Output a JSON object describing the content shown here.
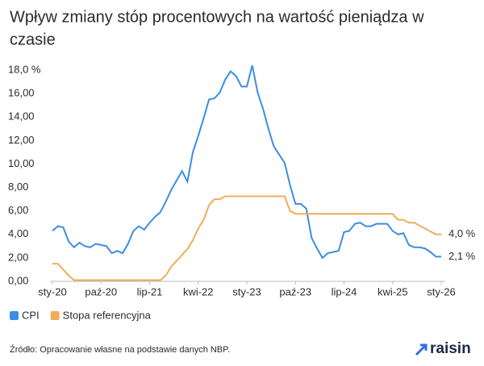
{
  "chart_data": {
    "type": "line",
    "title_lines": [
      "Wpływ zmiany stóp procentowych na wartość pieniądza w",
      "czasie"
    ],
    "categories": [
      "sty-20",
      null,
      null,
      null,
      null,
      null,
      null,
      null,
      null,
      "paź-20",
      null,
      null,
      null,
      null,
      null,
      null,
      null,
      null,
      "lip-21",
      null,
      null,
      null,
      null,
      null,
      null,
      null,
      null,
      "kwi-22",
      null,
      null,
      null,
      null,
      null,
      null,
      null,
      null,
      "sty-23",
      null,
      null,
      null,
      null,
      null,
      null,
      null,
      null,
      "paź-23",
      null,
      null,
      null,
      null,
      null,
      null,
      null,
      null,
      "lip-24",
      null,
      null,
      null,
      null,
      null,
      null,
      null,
      null,
      "kwi-25",
      null,
      null,
      null,
      null,
      null,
      null,
      null,
      null,
      "sty-26"
    ],
    "series": [
      {
        "name": "CPI",
        "color": "#3b8ee3",
        "values": [
          4.3,
          4.7,
          4.6,
          3.4,
          2.9,
          3.3,
          3.0,
          2.9,
          3.2,
          3.1,
          3.0,
          2.4,
          2.6,
          2.4,
          3.2,
          4.3,
          4.7,
          4.4,
          5.0,
          5.5,
          5.9,
          6.8,
          7.8,
          8.6,
          9.4,
          8.5,
          11.0,
          12.4,
          13.9,
          15.5,
          15.6,
          16.1,
          17.2,
          17.9,
          17.5,
          16.6,
          16.6,
          18.4,
          16.1,
          14.7,
          13.0,
          11.5,
          10.8,
          10.1,
          8.2,
          6.6,
          6.6,
          6.2,
          3.7,
          2.8,
          2.0,
          2.4,
          2.5,
          2.6,
          4.2,
          4.3,
          4.9,
          5.0,
          4.7,
          4.7,
          4.9,
          4.9,
          4.9,
          4.3,
          4.0,
          4.1,
          3.1,
          2.9,
          2.9,
          2.8,
          2.5,
          2.1,
          2.1
        ],
        "value_labels": [
          null,
          null,
          null,
          null,
          null,
          null,
          null,
          null,
          null,
          null,
          null,
          null,
          null,
          null,
          null,
          null,
          null,
          null,
          null,
          null,
          null,
          null,
          null,
          null,
          null,
          null,
          null,
          null,
          null,
          null,
          null,
          null,
          null,
          null,
          null,
          null,
          null,
          null,
          null,
          null,
          null,
          null,
          null,
          null,
          null,
          null,
          null,
          null,
          null,
          null,
          null,
          null,
          null,
          null,
          null,
          null,
          null,
          null,
          null,
          null,
          null,
          null,
          null,
          null,
          null,
          null,
          null,
          null,
          null,
          null,
          null,
          null,
          "2,1 %"
        ]
      },
      {
        "name": "Stopa referencyjna",
        "color": "#efad5a",
        "values": [
          1.5,
          1.5,
          1.0,
          0.5,
          0.1,
          0.1,
          0.1,
          0.1,
          0.1,
          0.1,
          0.1,
          0.1,
          0.1,
          0.1,
          0.1,
          0.1,
          0.1,
          0.1,
          0.1,
          0.1,
          0.1,
          0.5,
          1.25,
          1.75,
          2.25,
          2.75,
          3.5,
          4.5,
          5.25,
          6.5,
          7.0,
          7.0,
          7.25,
          7.25,
          7.25,
          7.25,
          7.25,
          7.25,
          7.25,
          7.25,
          7.25,
          7.25,
          7.25,
          7.25,
          6.0,
          5.75,
          5.75,
          5.75,
          5.75,
          5.75,
          5.75,
          5.75,
          5.75,
          5.75,
          5.75,
          5.75,
          5.75,
          5.75,
          5.75,
          5.75,
          5.75,
          5.75,
          5.75,
          5.75,
          5.25,
          5.25,
          5.0,
          5.0,
          4.75,
          4.5,
          4.25,
          4.0,
          4.0
        ],
        "value_labels": [
          null,
          null,
          null,
          null,
          null,
          null,
          null,
          null,
          null,
          null,
          null,
          null,
          null,
          null,
          null,
          null,
          null,
          null,
          null,
          null,
          null,
          null,
          null,
          null,
          null,
          null,
          null,
          null,
          null,
          null,
          null,
          null,
          null,
          null,
          null,
          null,
          null,
          null,
          null,
          null,
          null,
          null,
          null,
          null,
          null,
          null,
          null,
          null,
          null,
          null,
          null,
          null,
          null,
          null,
          null,
          null,
          null,
          null,
          null,
          null,
          null,
          null,
          null,
          null,
          null,
          null,
          null,
          null,
          null,
          null,
          null,
          null,
          "4,0 %"
        ]
      }
    ],
    "ylim": [
      0,
      18
    ],
    "yticks": [
      {
        "value": 0,
        "label": "0,00"
      },
      {
        "value": 2,
        "label": "2,00"
      },
      {
        "value": 4,
        "label": "4,00"
      },
      {
        "value": 6,
        "label": "6,00"
      },
      {
        "value": 8,
        "label": "8,00"
      },
      {
        "value": 10,
        "label": "10,00"
      },
      {
        "value": 12,
        "label": "12,00"
      },
      {
        "value": 14,
        "label": "14,00"
      },
      {
        "value": 16,
        "label": "16,00"
      },
      {
        "value": 18,
        "label": "18,0 %"
      }
    ],
    "grid": false,
    "legend": "bottom-left",
    "source": "Źródło: Opracowanie własne na podstawie danych NBP.",
    "logo": "raisin"
  }
}
